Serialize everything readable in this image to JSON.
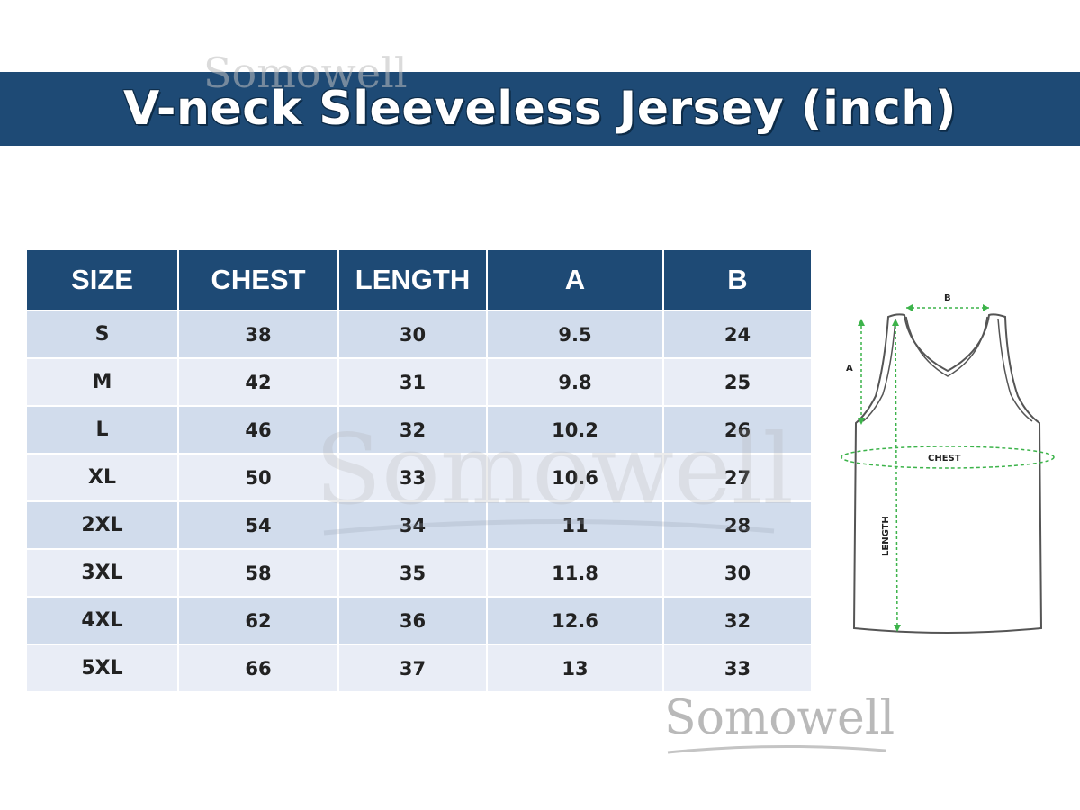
{
  "banner": {
    "title": "V-neck Sleeveless Jersey (inch)"
  },
  "watermarks": {
    "brand": "Somowell"
  },
  "table": {
    "headers": [
      "SIZE",
      "CHEST",
      "LENGTH",
      "A",
      "B"
    ],
    "rows": [
      [
        "S",
        "38",
        "30",
        "9.5",
        "24"
      ],
      [
        "M",
        "42",
        "31",
        "9.8",
        "25"
      ],
      [
        "L",
        "46",
        "32",
        "10.2",
        "26"
      ],
      [
        "XL",
        "50",
        "33",
        "10.6",
        "27"
      ],
      [
        "2XL",
        "54",
        "34",
        "11",
        "28"
      ],
      [
        "3XL",
        "58",
        "35",
        "11.8",
        "30"
      ],
      [
        "4XL",
        "62",
        "36",
        "12.6",
        "32"
      ],
      [
        "5XL",
        "66",
        "37",
        "13",
        "33"
      ]
    ]
  },
  "diagram": {
    "label_b": "B",
    "label_a": "A",
    "label_chest": "CHEST",
    "label_length": "LENGTH"
  },
  "colors": {
    "header_bg": "#1e4a75",
    "row_odd": "#d1dcec",
    "row_even": "#e9edf6",
    "measure_line": "#3cb34a"
  }
}
